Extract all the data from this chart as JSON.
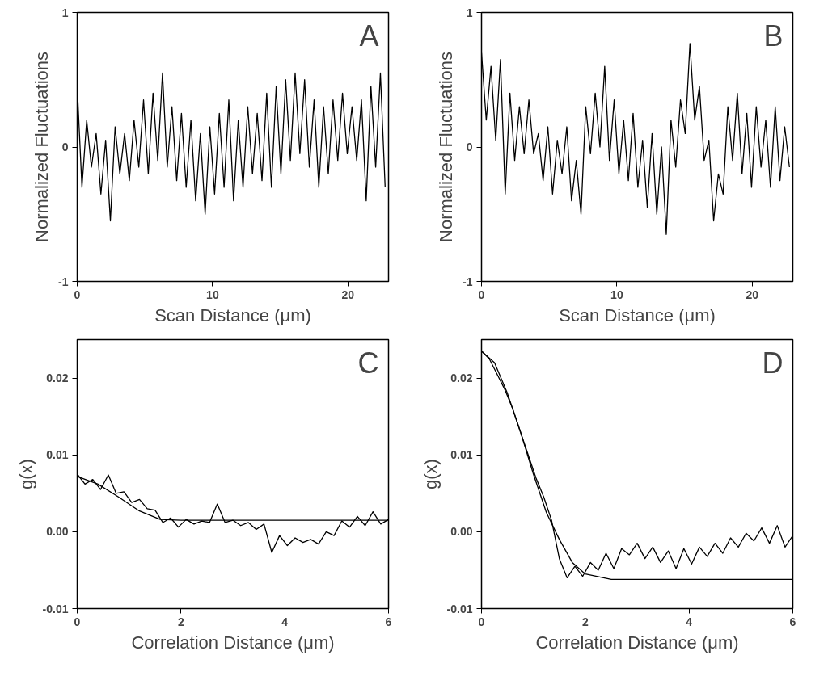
{
  "chart_data": [
    {
      "type": "line",
      "xlabel": "Scan Distance (μm)",
      "ylabel": "Normalized Fluctuations",
      "annotations": [
        "A"
      ],
      "xlim": [
        0,
        23
      ],
      "ylim": [
        -1,
        1
      ],
      "xticks": [
        0,
        10,
        20
      ],
      "yticks": [
        -1,
        0,
        1
      ],
      "grid": false,
      "series": [
        {
          "color": "#000000",
          "x": [
            0,
            0.35,
            0.7,
            1.05,
            1.4,
            1.75,
            2.1,
            2.45,
            2.8,
            3.15,
            3.5,
            3.85,
            4.2,
            4.55,
            4.9,
            5.25,
            5.6,
            5.95,
            6.3,
            6.65,
            7,
            7.35,
            7.7,
            8.05,
            8.4,
            8.75,
            9.1,
            9.45,
            9.8,
            10.15,
            10.5,
            10.85,
            11.2,
            11.55,
            11.9,
            12.25,
            12.6,
            12.95,
            13.3,
            13.65,
            14,
            14.35,
            14.7,
            15.05,
            15.4,
            15.75,
            16.1,
            16.45,
            16.8,
            17.15,
            17.5,
            17.85,
            18.2,
            18.55,
            18.9,
            19.25,
            19.6,
            19.95,
            20.3,
            20.65,
            21,
            21.35,
            21.7,
            22.05,
            22.4,
            22.75
          ],
          "values": [
            0.45,
            -0.3,
            0.2,
            -0.15,
            0.1,
            -0.35,
            0.05,
            -0.55,
            0.15,
            -0.2,
            0.1,
            -0.25,
            0.2,
            -0.15,
            0.35,
            -0.2,
            0.4,
            -0.1,
            0.55,
            -0.15,
            0.3,
            -0.25,
            0.25,
            -0.3,
            0.2,
            -0.4,
            0.1,
            -0.5,
            0.15,
            -0.35,
            0.25,
            -0.3,
            0.35,
            -0.4,
            0.2,
            -0.3,
            0.3,
            -0.2,
            0.25,
            -0.25,
            0.4,
            -0.3,
            0.45,
            -0.2,
            0.5,
            -0.1,
            0.55,
            -0.05,
            0.5,
            -0.15,
            0.35,
            -0.3,
            0.3,
            -0.2,
            0.35,
            -0.1,
            0.4,
            -0.05,
            0.3,
            -0.1,
            0.35,
            -0.4,
            0.45,
            -0.15,
            0.55,
            -0.3
          ]
        }
      ]
    },
    {
      "type": "line",
      "xlabel": "Scan Distance (μm)",
      "ylabel": "Normalized Fluctuations",
      "annotations": [
        "B"
      ],
      "xlim": [
        0,
        23
      ],
      "ylim": [
        -1,
        1
      ],
      "xticks": [
        0,
        10,
        20
      ],
      "yticks": [
        -1,
        0,
        1
      ],
      "grid": false,
      "series": [
        {
          "color": "#000000",
          "x": [
            0,
            0.35,
            0.7,
            1.05,
            1.4,
            1.75,
            2.1,
            2.45,
            2.8,
            3.15,
            3.5,
            3.85,
            4.2,
            4.55,
            4.9,
            5.25,
            5.6,
            5.95,
            6.3,
            6.65,
            7,
            7.35,
            7.7,
            8.05,
            8.4,
            8.75,
            9.1,
            9.45,
            9.8,
            10.15,
            10.5,
            10.85,
            11.2,
            11.55,
            11.9,
            12.25,
            12.6,
            12.95,
            13.3,
            13.65,
            14,
            14.35,
            14.7,
            15.05,
            15.4,
            15.75,
            16.1,
            16.45,
            16.8,
            17.15,
            17.5,
            17.85,
            18.2,
            18.55,
            18.9,
            19.25,
            19.6,
            19.95,
            20.3,
            20.65,
            21,
            21.35,
            21.7,
            22.05,
            22.4,
            22.75
          ],
          "values": [
            0.7,
            0.2,
            0.6,
            0.05,
            0.65,
            -0.35,
            0.4,
            -0.1,
            0.3,
            -0.05,
            0.35,
            -0.05,
            0.1,
            -0.25,
            0.15,
            -0.35,
            0.05,
            -0.2,
            0.15,
            -0.4,
            -0.1,
            -0.5,
            0.3,
            -0.05,
            0.4,
            0.0,
            0.6,
            -0.1,
            0.35,
            -0.2,
            0.2,
            -0.25,
            0.25,
            -0.3,
            0.05,
            -0.45,
            0.1,
            -0.5,
            0.0,
            -0.65,
            0.2,
            -0.15,
            0.35,
            0.1,
            0.77,
            0.2,
            0.45,
            -0.1,
            0.05,
            -0.55,
            -0.2,
            -0.35,
            0.3,
            -0.1,
            0.4,
            -0.2,
            0.25,
            -0.3,
            0.3,
            -0.15,
            0.2,
            -0.3,
            0.3,
            -0.25,
            0.15,
            -0.15
          ]
        }
      ]
    },
    {
      "type": "line",
      "xlabel": "Correlation Distance (μm)",
      "ylabel": "g(x)",
      "annotations": [
        "C"
      ],
      "xlim": [
        0,
        6
      ],
      "ylim": [
        -0.01,
        0.025
      ],
      "xticks": [
        0,
        2,
        4,
        6
      ],
      "yticks": [
        {
          "value": -0.01,
          "label": "-0.01"
        },
        {
          "value": 0,
          "label": "0.00"
        },
        {
          "value": 0.01,
          "label": "0.01"
        },
        {
          "value": 0.02,
          "label": "0.02"
        }
      ],
      "grid": false,
      "series": [
        {
          "color": "#000000",
          "x": [
            0,
            0.15,
            0.3,
            0.45,
            0.6,
            0.75,
            0.9,
            1.05,
            1.2,
            1.35,
            1.5,
            1.65,
            1.8,
            1.95,
            2.1,
            2.25,
            2.4,
            2.55,
            2.7,
            2.85,
            3.0,
            3.15,
            3.3,
            3.45,
            3.6,
            3.75,
            3.9,
            4.05,
            4.2,
            4.35,
            4.5,
            4.65,
            4.8,
            4.95,
            5.1,
            5.25,
            5.4,
            5.55,
            5.7,
            5.85,
            6.0
          ],
          "values": [
            0.0075,
            0.0062,
            0.0068,
            0.0055,
            0.0074,
            0.005,
            0.0052,
            0.0038,
            0.0042,
            0.003,
            0.0028,
            0.0012,
            0.0018,
            0.0006,
            0.0016,
            0.001,
            0.0014,
            0.0012,
            0.0036,
            0.0012,
            0.0015,
            0.0008,
            0.0012,
            0.0003,
            0.001,
            -0.0027,
            -0.0005,
            -0.0018,
            -0.0008,
            -0.0014,
            -0.001,
            -0.0016,
            0.0,
            -0.0005,
            0.0014,
            0.0006,
            0.002,
            0.0008,
            0.0026,
            0.001,
            0.0016
          ]
        },
        {
          "color": "#000000",
          "x": [
            0,
            0.4,
            0.8,
            1.2,
            1.6,
            2.0,
            6.0
          ],
          "values": [
            0.0072,
            0.0062,
            0.0045,
            0.0027,
            0.0016,
            0.0015,
            0.0015
          ]
        }
      ]
    },
    {
      "type": "line",
      "xlabel": "Correlation Distance (μm)",
      "ylabel": "g(x)",
      "annotations": [
        "D"
      ],
      "xlim": [
        0,
        6
      ],
      "ylim": [
        -0.01,
        0.025
      ],
      "xticks": [
        0,
        2,
        4,
        6
      ],
      "yticks": [
        {
          "value": -0.01,
          "label": "-0.01"
        },
        {
          "value": 0,
          "label": "0.00"
        },
        {
          "value": 0.01,
          "label": "0.01"
        },
        {
          "value": 0.02,
          "label": "0.02"
        }
      ],
      "grid": false,
      "series": [
        {
          "color": "#000000",
          "x": [
            0,
            0.15,
            0.3,
            0.45,
            0.6,
            0.75,
            0.9,
            1.05,
            1.2,
            1.35,
            1.5,
            1.65,
            1.8,
            1.95,
            2.1,
            2.25,
            2.4,
            2.55,
            2.7,
            2.85,
            3.0,
            3.15,
            3.3,
            3.45,
            3.6,
            3.75,
            3.9,
            4.05,
            4.2,
            4.35,
            4.5,
            4.65,
            4.8,
            4.95,
            5.1,
            5.25,
            5.4,
            5.55,
            5.7,
            5.85,
            6.0
          ],
          "values": [
            0.0235,
            0.0225,
            0.0205,
            0.0185,
            0.016,
            0.013,
            0.01,
            0.007,
            0.0045,
            0.0015,
            -0.0035,
            -0.006,
            -0.0045,
            -0.0058,
            -0.004,
            -0.005,
            -0.0028,
            -0.0048,
            -0.0022,
            -0.003,
            -0.0015,
            -0.0035,
            -0.002,
            -0.004,
            -0.0025,
            -0.0048,
            -0.0022,
            -0.0042,
            -0.002,
            -0.0032,
            -0.0015,
            -0.0028,
            -0.0008,
            -0.002,
            -0.0002,
            -0.0012,
            0.0005,
            -0.0015,
            0.0008,
            -0.002,
            -0.0005
          ]
        },
        {
          "color": "#000000",
          "x": [
            0,
            0.25,
            0.5,
            0.75,
            1.0,
            1.25,
            1.5,
            1.75,
            2.0,
            2.5,
            3.0,
            6.0
          ],
          "values": [
            0.0235,
            0.022,
            0.018,
            0.013,
            0.0075,
            0.0025,
            -0.001,
            -0.004,
            -0.0055,
            -0.0062,
            -0.0062,
            -0.0062
          ]
        }
      ]
    }
  ]
}
